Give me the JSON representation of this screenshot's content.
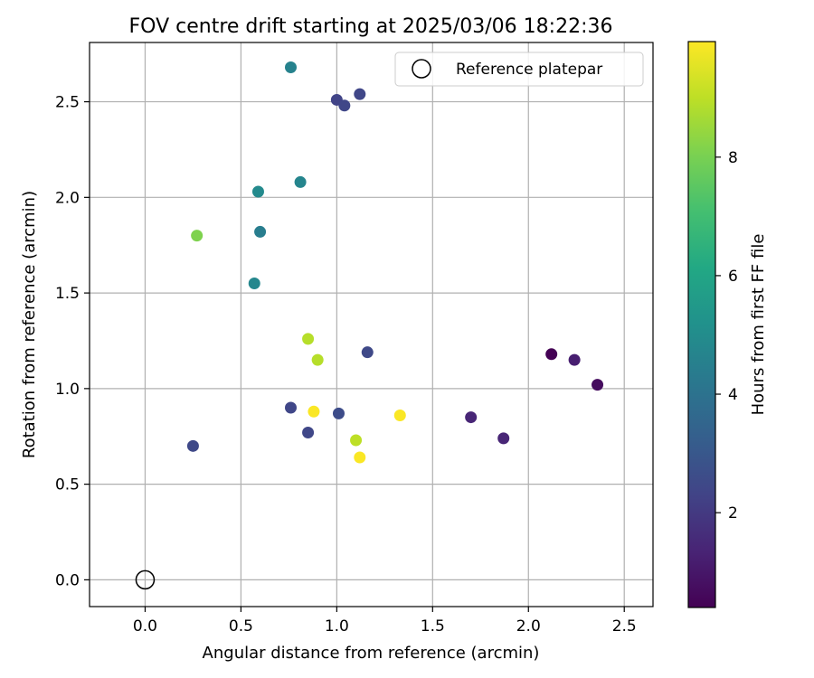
{
  "chart_data": {
    "type": "scatter",
    "title": "FOV centre drift starting at 2025/03/06 18:22:36",
    "xlabel": "Angular distance from reference (arcmin)",
    "ylabel": "Rotation from reference (arcmin)",
    "xlim": [
      -0.29,
      2.65
    ],
    "ylim": [
      -0.14,
      2.81
    ],
    "xticks": [
      "0.0",
      "0.5",
      "1.0",
      "1.5",
      "2.0",
      "2.5"
    ],
    "yticks": [
      "0.0",
      "0.5",
      "1.0",
      "1.5",
      "2.0",
      "2.5"
    ],
    "grid": true,
    "legend": {
      "position": "top-right",
      "label": "Reference platepar"
    },
    "reference_point": {
      "x": 0.0,
      "y": 0.0
    },
    "colorbar": {
      "label": "Hours from first FF file",
      "colormap": "viridis",
      "range": [
        0.4,
        9.95
      ],
      "ticks": [
        "2",
        "4",
        "6",
        "8"
      ]
    },
    "points": [
      {
        "x": 0.76,
        "y": 2.68,
        "hours": 4.6
      },
      {
        "x": 1.0,
        "y": 2.51,
        "hours": 2.3
      },
      {
        "x": 1.04,
        "y": 2.48,
        "hours": 2.4
      },
      {
        "x": 1.12,
        "y": 2.54,
        "hours": 2.4
      },
      {
        "x": 0.81,
        "y": 2.08,
        "hours": 4.7
      },
      {
        "x": 0.59,
        "y": 2.03,
        "hours": 4.9
      },
      {
        "x": 0.27,
        "y": 1.8,
        "hours": 8.1
      },
      {
        "x": 0.6,
        "y": 1.82,
        "hours": 4.4
      },
      {
        "x": 0.57,
        "y": 1.55,
        "hours": 4.8
      },
      {
        "x": 0.85,
        "y": 1.26,
        "hours": 8.9
      },
      {
        "x": 0.9,
        "y": 1.15,
        "hours": 8.9
      },
      {
        "x": 1.16,
        "y": 1.19,
        "hours": 2.5
      },
      {
        "x": 0.76,
        "y": 0.9,
        "hours": 2.4
      },
      {
        "x": 0.88,
        "y": 0.88,
        "hours": 9.9
      },
      {
        "x": 1.01,
        "y": 0.87,
        "hours": 2.6
      },
      {
        "x": 1.33,
        "y": 0.86,
        "hours": 9.9
      },
      {
        "x": 0.85,
        "y": 0.77,
        "hours": 2.4
      },
      {
        "x": 1.1,
        "y": 0.73,
        "hours": 9.0
      },
      {
        "x": 1.12,
        "y": 0.64,
        "hours": 9.9
      },
      {
        "x": 0.25,
        "y": 0.7,
        "hours": 2.5
      },
      {
        "x": 1.7,
        "y": 0.85,
        "hours": 1.4
      },
      {
        "x": 1.87,
        "y": 0.74,
        "hours": 1.4
      },
      {
        "x": 2.12,
        "y": 1.18,
        "hours": 0.4
      },
      {
        "x": 2.24,
        "y": 1.15,
        "hours": 1.2
      },
      {
        "x": 2.36,
        "y": 1.02,
        "hours": 0.7
      }
    ]
  }
}
